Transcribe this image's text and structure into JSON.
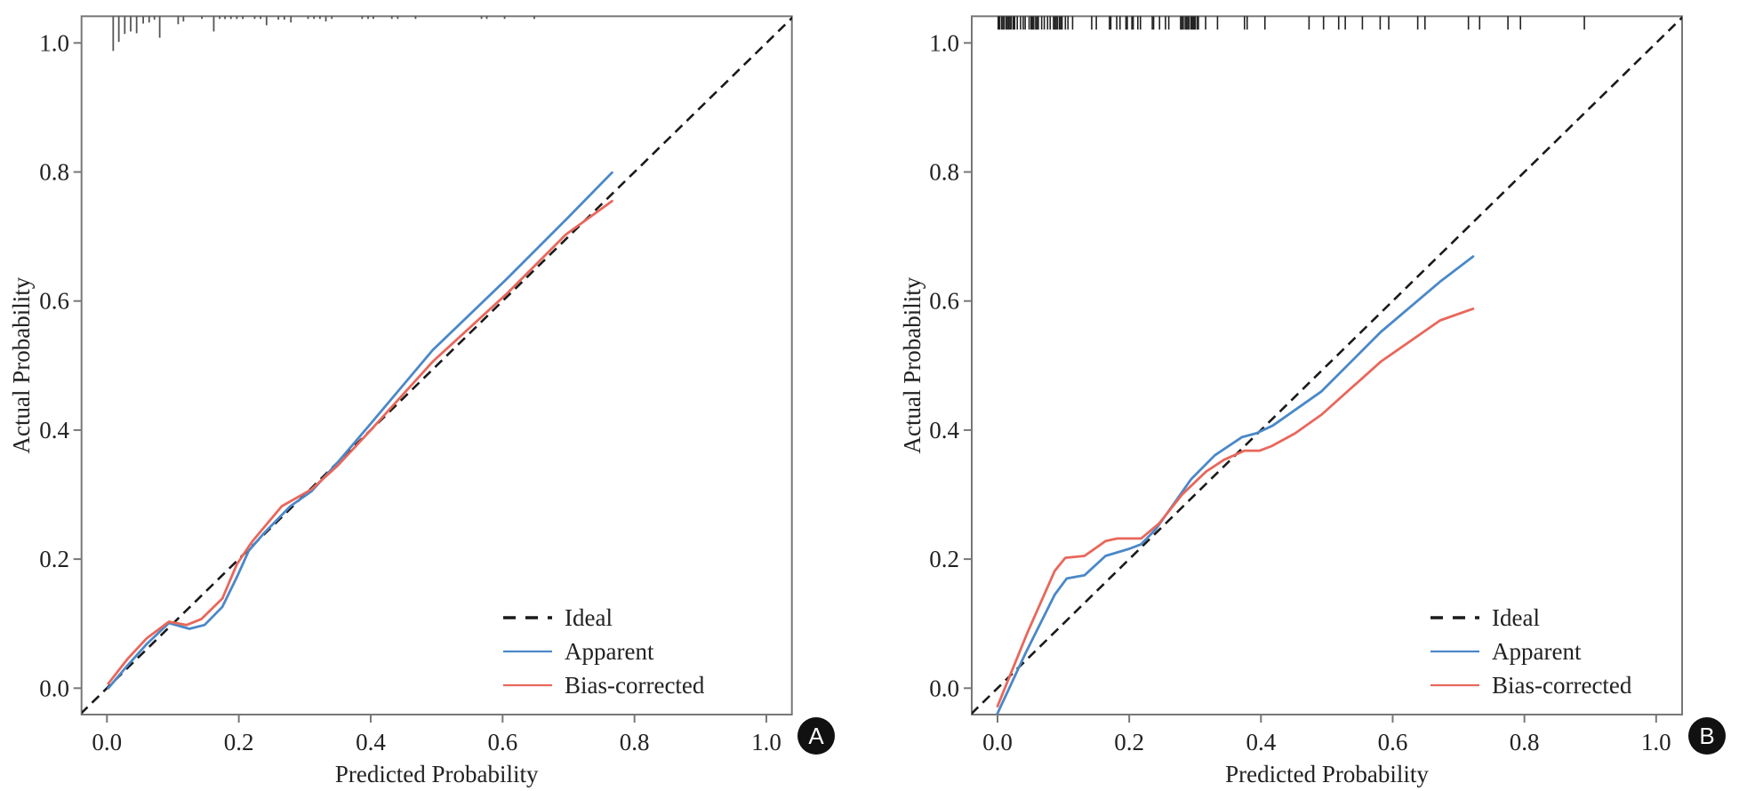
{
  "chart_data": [
    {
      "panel_label": "A",
      "type": "line",
      "xlabel": "Predicted Probability",
      "ylabel": "Actual Probability",
      "xlim": [
        -0.04,
        1.04
      ],
      "ylim": [
        -0.04,
        1.04
      ],
      "xticks": [
        "0.0",
        "0.2",
        "0.4",
        "0.6",
        "0.8",
        "1.0"
      ],
      "yticks": [
        "0.0",
        "0.2",
        "0.4",
        "0.6",
        "0.8",
        "1.0"
      ],
      "grid": false,
      "legend_position": "bottom-right",
      "series": [
        {
          "name": "Ideal",
          "style": "dashed",
          "color": "#1a1a1a",
          "x": [
            -0.04,
            1.04
          ],
          "y": [
            -0.04,
            1.04
          ]
        },
        {
          "name": "Apparent",
          "style": "solid",
          "color": "#4a88c8",
          "x": [
            0.002,
            0.031,
            0.06,
            0.094,
            0.125,
            0.148,
            0.175,
            0.197,
            0.215,
            0.238,
            0.278,
            0.31,
            0.35,
            0.4,
            0.494,
            0.606,
            0.696,
            0.766
          ],
          "y": [
            0.0,
            0.035,
            0.068,
            0.101,
            0.092,
            0.098,
            0.126,
            0.172,
            0.213,
            0.24,
            0.282,
            0.305,
            0.35,
            0.41,
            0.524,
            0.634,
            0.726,
            0.799
          ]
        },
        {
          "name": "Bias-corrected",
          "style": "solid",
          "color": "#e8675b",
          "x": [
            0.002,
            0.031,
            0.06,
            0.094,
            0.121,
            0.143,
            0.175,
            0.197,
            0.22,
            0.265,
            0.31,
            0.35,
            0.4,
            0.494,
            0.606,
            0.696,
            0.766
          ],
          "y": [
            0.007,
            0.045,
            0.077,
            0.103,
            0.098,
            0.107,
            0.139,
            0.192,
            0.227,
            0.282,
            0.308,
            0.345,
            0.4,
            0.506,
            0.611,
            0.703,
            0.755
          ]
        }
      ],
      "rug": {
        "x": [
          0.0095,
          0.018,
          0.027,
          0.036,
          0.045,
          0.055,
          0.064,
          0.072,
          0.08,
          0.108,
          0.116,
          0.144,
          0.162,
          0.171,
          0.179,
          0.188,
          0.197,
          0.206,
          0.224,
          0.233,
          0.242,
          0.26,
          0.269,
          0.279,
          0.305,
          0.314,
          0.323,
          0.332,
          0.341,
          0.387,
          0.396,
          0.404,
          0.432,
          0.441,
          0.468,
          0.568,
          0.576,
          0.603,
          0.648
        ],
        "relative_frequency": [
          1.0,
          0.74,
          0.51,
          0.44,
          0.49,
          0.21,
          0.18,
          0.1,
          0.62,
          0.23,
          0.15,
          0.05,
          0.44,
          0.05,
          0.08,
          0.08,
          0.08,
          0.08,
          0.05,
          0.05,
          0.26,
          0.1,
          0.1,
          0.18,
          0.05,
          0.05,
          0.05,
          0.15,
          0.05,
          0.05,
          0.05,
          0.05,
          0.05,
          0.05,
          0.05,
          0.05,
          0.05,
          0.05,
          0.05
        ]
      }
    },
    {
      "panel_label": "B",
      "type": "line",
      "xlabel": "Predicted Probability",
      "ylabel": "Actual Probability",
      "xlim": [
        -0.04,
        1.04
      ],
      "ylim": [
        -0.04,
        1.04
      ],
      "xticks": [
        "0.0",
        "0.2",
        "0.4",
        "0.6",
        "0.8",
        "1.0"
      ],
      "yticks": [
        "0.0",
        "0.2",
        "0.4",
        "0.6",
        "0.8",
        "1.0"
      ],
      "grid": false,
      "legend_position": "bottom-right",
      "series": [
        {
          "name": "Ideal",
          "style": "dashed",
          "color": "#1a1a1a",
          "x": [
            -0.04,
            1.04
          ],
          "y": [
            -0.04,
            1.04
          ]
        },
        {
          "name": "Apparent",
          "style": "solid",
          "color": "#4a88c8",
          "x": [
            0.0,
            0.042,
            0.087,
            0.105,
            0.132,
            0.164,
            0.2,
            0.218,
            0.24,
            0.272,
            0.294,
            0.33,
            0.371,
            0.393,
            0.418,
            0.492,
            0.582,
            0.672,
            0.722
          ],
          "y": [
            -0.039,
            0.053,
            0.145,
            0.17,
            0.175,
            0.205,
            0.216,
            0.223,
            0.246,
            0.292,
            0.324,
            0.361,
            0.389,
            0.395,
            0.407,
            0.46,
            0.552,
            0.63,
            0.669
          ]
        },
        {
          "name": "Bias-corrected",
          "style": "solid",
          "color": "#e8675b",
          "x": [
            0.0,
            0.045,
            0.087,
            0.103,
            0.132,
            0.164,
            0.182,
            0.218,
            0.245,
            0.281,
            0.317,
            0.344,
            0.375,
            0.398,
            0.416,
            0.452,
            0.492,
            0.582,
            0.672,
            0.722
          ],
          "y": [
            -0.028,
            0.085,
            0.182,
            0.202,
            0.205,
            0.228,
            0.232,
            0.232,
            0.255,
            0.301,
            0.336,
            0.354,
            0.368,
            0.368,
            0.375,
            0.395,
            0.424,
            0.506,
            0.57,
            0.588
          ]
        }
      ],
      "rug": {
        "x": [
          0.001,
          0.003,
          0.006,
          0.008,
          0.01,
          0.013,
          0.015,
          0.017,
          0.019,
          0.021,
          0.024,
          0.026,
          0.03,
          0.035,
          0.039,
          0.042,
          0.048,
          0.051,
          0.053,
          0.055,
          0.058,
          0.06,
          0.062,
          0.067,
          0.071,
          0.076,
          0.08,
          0.085,
          0.087,
          0.089,
          0.091,
          0.094,
          0.096,
          0.098,
          0.103,
          0.107,
          0.114,
          0.143,
          0.15,
          0.17,
          0.172,
          0.181,
          0.186,
          0.195,
          0.197,
          0.204,
          0.206,
          0.213,
          0.217,
          0.235,
          0.237,
          0.246,
          0.255,
          0.26,
          0.278,
          0.28,
          0.282,
          0.285,
          0.287,
          0.289,
          0.291,
          0.294,
          0.296,
          0.298,
          0.3,
          0.303,
          0.305,
          0.316,
          0.334,
          0.375,
          0.379,
          0.406,
          0.473,
          0.495,
          0.518,
          0.528,
          0.554,
          0.581,
          0.594,
          0.638,
          0.649,
          0.715,
          0.732,
          0.775,
          0.794,
          0.891
        ],
        "relative_frequency": "uniform"
      }
    }
  ]
}
